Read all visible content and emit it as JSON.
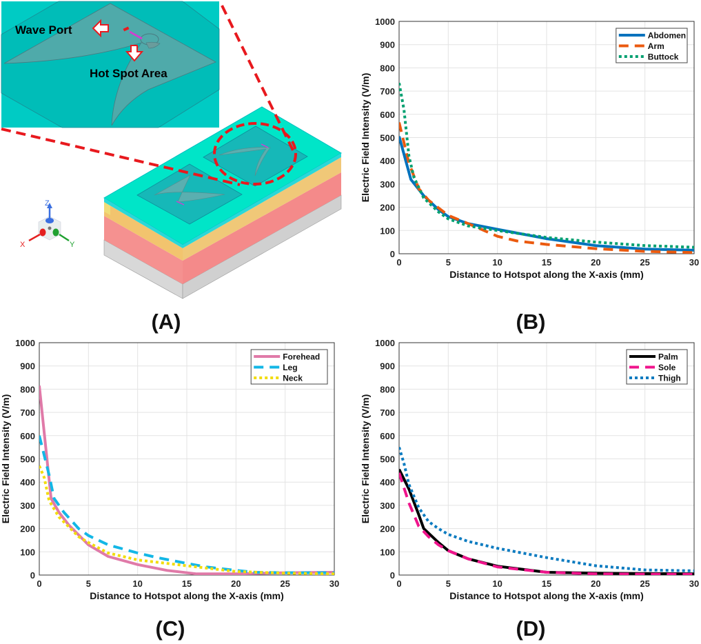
{
  "panel_a": {
    "label": "(A)",
    "wave_port_label": "Wave Port",
    "hot_spot_label": "Hot Spot Area",
    "axis_labels": {
      "x": "X",
      "y": "Y",
      "z": "Z"
    },
    "colors": {
      "substrate_top": "#00E5C8",
      "inset_bg": "#00CBC4",
      "layer_yellow": "#F2C46E",
      "layer_red": "#F59190",
      "layer_gray": "#D6D6D6",
      "callout": "#E8191E"
    }
  },
  "chart_data": [
    {
      "panel": "(B)",
      "type": "line",
      "xlabel": "Distance to Hotspot along the X-axis (mm)",
      "ylabel": "Electric Field Intensity (V/m)",
      "xlim": [
        0,
        30
      ],
      "ylim": [
        0,
        1000
      ],
      "xticks": [
        0,
        5,
        10,
        15,
        20,
        25,
        30
      ],
      "yticks": [
        0,
        100,
        200,
        300,
        400,
        500,
        600,
        700,
        800,
        900,
        1000
      ],
      "grid": true,
      "legend": "top-right",
      "series": [
        {
          "name": "Abdomen",
          "color": "#0072BD",
          "style": "solid",
          "x": [
            0,
            1.2,
            2.5,
            4,
            5,
            7,
            10,
            15,
            20,
            25,
            30
          ],
          "y": [
            505,
            320,
            250,
            190,
            160,
            130,
            105,
            65,
            35,
            20,
            15
          ]
        },
        {
          "name": "Arm",
          "color": "#EB5A0F",
          "style": "dashed",
          "x": [
            0,
            1,
            2,
            3,
            5,
            7,
            10,
            12,
            15,
            20,
            25,
            30
          ],
          "y": [
            565,
            390,
            280,
            230,
            165,
            130,
            75,
            55,
            40,
            22,
            10,
            5
          ]
        },
        {
          "name": "Buttock",
          "color": "#00A070",
          "style": "dotted",
          "x": [
            0,
            0.5,
            1,
            1.5,
            2.5,
            4,
            5,
            7,
            10,
            15,
            20,
            25,
            30
          ],
          "y": [
            735,
            620,
            420,
            330,
            240,
            180,
            150,
            120,
            100,
            70,
            50,
            35,
            28
          ]
        }
      ]
    },
    {
      "panel": "(C)",
      "type": "line",
      "xlabel": "Distance to Hotspot along the X-axis (mm)",
      "ylabel": "Electric Field Intensity (V/m)",
      "xlim": [
        0,
        30
      ],
      "ylim": [
        0,
        1000
      ],
      "xticks": [
        0,
        5,
        10,
        15,
        20,
        25,
        30
      ],
      "yticks": [
        0,
        100,
        200,
        300,
        400,
        500,
        600,
        700,
        800,
        900,
        1000
      ],
      "grid": true,
      "legend": "top-right",
      "series": [
        {
          "name": "Forehead",
          "color": "#E07AA8",
          "style": "solid",
          "x": [
            0,
            1.2,
            2,
            3,
            5,
            7,
            10,
            13,
            16,
            20,
            25,
            30
          ],
          "y": [
            815,
            330,
            270,
            215,
            130,
            80,
            45,
            20,
            5,
            5,
            10,
            12
          ]
        },
        {
          "name": "Leg",
          "color": "#13B7E6",
          "style": "dashed",
          "x": [
            0,
            1,
            1.5,
            2.5,
            4,
            5,
            7,
            10,
            12,
            15,
            17,
            20,
            22,
            25,
            30
          ],
          "y": [
            600,
            430,
            330,
            270,
            200,
            170,
            130,
            95,
            75,
            50,
            35,
            20,
            12,
            10,
            10
          ]
        },
        {
          "name": "Neck",
          "color": "#F2DC0A",
          "style": "dotted",
          "x": [
            0,
            0.5,
            1,
            2,
            4,
            5,
            7,
            10,
            15,
            20,
            25,
            30
          ],
          "y": [
            470,
            420,
            320,
            250,
            165,
            140,
            95,
            65,
            40,
            15,
            8,
            5
          ]
        }
      ]
    },
    {
      "panel": "(D)",
      "type": "line",
      "xlabel": "Distance to Hotspot along the X-axis (mm)",
      "ylabel": "Electric Field Intensity (V/m)",
      "xlim": [
        0,
        30
      ],
      "ylim": [
        0,
        1000
      ],
      "xticks": [
        0,
        5,
        10,
        15,
        20,
        25,
        30
      ],
      "yticks": [
        0,
        100,
        200,
        300,
        400,
        500,
        600,
        700,
        800,
        900,
        1000
      ],
      "grid": true,
      "legend": "top-right",
      "series": [
        {
          "name": "Palm",
          "color": "#000000",
          "style": "solid",
          "x": [
            0,
            1,
            2,
            2.5,
            4,
            5,
            7,
            10,
            15,
            20,
            30
          ],
          "y": [
            455,
            370,
            260,
            200,
            140,
            105,
            70,
            38,
            12,
            8,
            5
          ]
        },
        {
          "name": "Sole",
          "color": "#F0148C",
          "style": "dashed",
          "x": [
            0,
            1,
            2,
            3,
            4,
            5,
            7,
            10,
            15,
            20,
            30
          ],
          "y": [
            440,
            310,
            210,
            165,
            130,
            105,
            70,
            35,
            12,
            5,
            3
          ]
        },
        {
          "name": "Thigh",
          "color": "#0C7BC0",
          "style": "dotted",
          "x": [
            0,
            0.5,
            1,
            2,
            3,
            4,
            5,
            7,
            10,
            15,
            20,
            25,
            30
          ],
          "y": [
            550,
            480,
            390,
            290,
            230,
            200,
            175,
            145,
            115,
            75,
            40,
            22,
            18
          ]
        }
      ]
    }
  ]
}
